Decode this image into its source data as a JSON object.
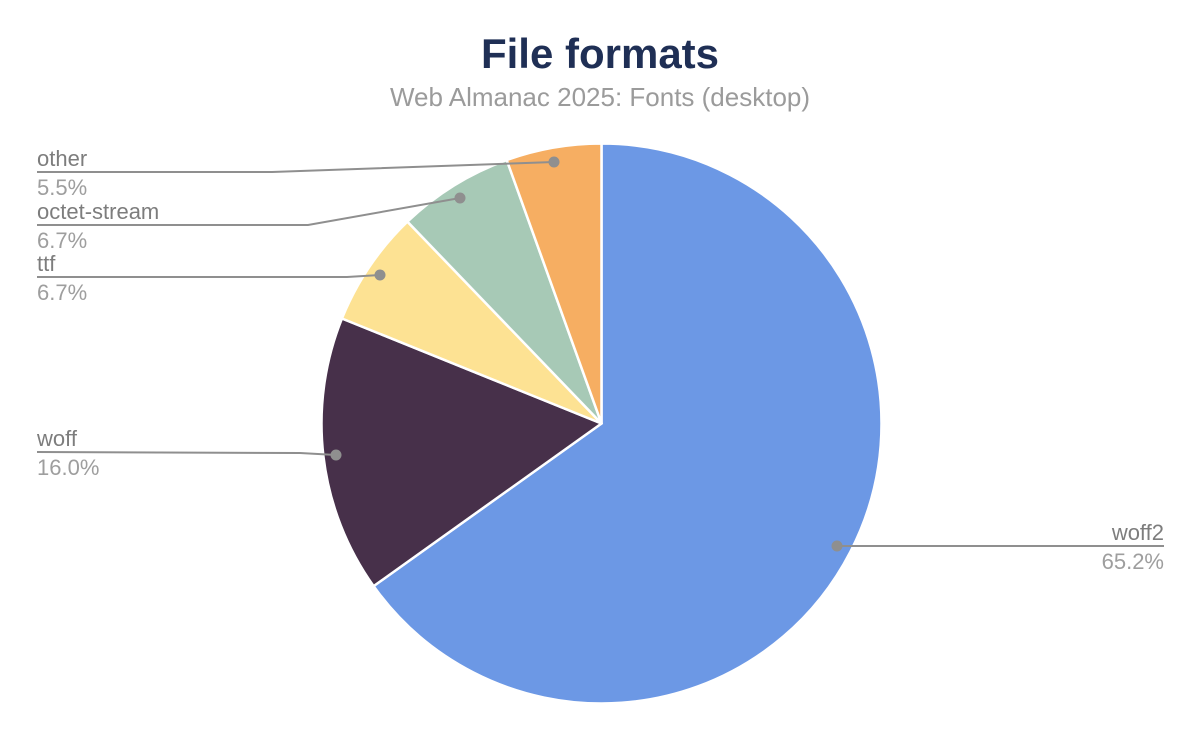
{
  "chart_data": {
    "type": "pie",
    "title": "File formats",
    "subtitle": "Web Almanac 2025: Fonts (desktop)",
    "unit": "%",
    "start_angle_deg": 0,
    "direction": "clockwise",
    "legend_position": "callout-labels",
    "slices": [
      {
        "label": "woff2",
        "value": 65.2,
        "display": "65.2%",
        "color": "#6c98e5"
      },
      {
        "label": "woff",
        "value": 16.0,
        "display": "16.0%",
        "color": "#47304a"
      },
      {
        "label": "ttf",
        "value": 6.7,
        "display": "6.7%",
        "color": "#fde293"
      },
      {
        "label": "octet-stream",
        "value": 6.7,
        "display": "6.7%",
        "color": "#a7c9b6"
      },
      {
        "label": "other",
        "value": 5.5,
        "display": "5.5%",
        "color": "#f6ae62"
      }
    ],
    "colors": {
      "title": "#1f2f55",
      "subtitle": "#9b9b9b",
      "label_name": "#7d7d7d",
      "label_value": "#9e9e9e",
      "leader": "#8f8f8f",
      "slice_border": "#ffffff",
      "background": "#ffffff"
    }
  }
}
